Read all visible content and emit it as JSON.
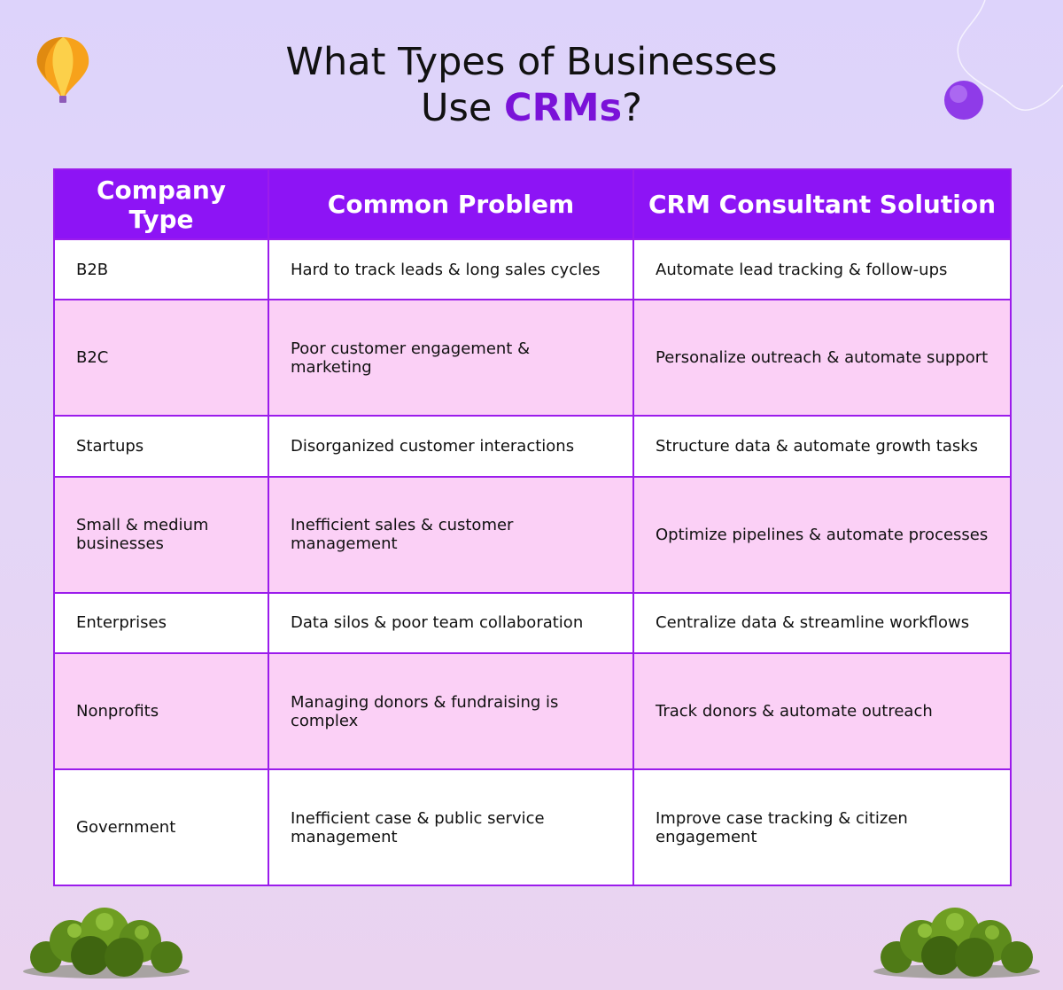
{
  "title": {
    "line1": "What Types of Businesses",
    "line2_prefix": "Use ",
    "line2_accent": "CRMs",
    "line2_suffix": "?"
  },
  "table": {
    "headers": [
      "Company Type",
      "Common Problem",
      "CRM Consultant Solution"
    ],
    "rows": [
      [
        "B2B",
        "Hard to track leads & long sales cycles",
        "Automate lead tracking & follow-ups"
      ],
      [
        "B2C",
        "Poor customer engagement & marketing",
        "Personalize outreach & automate support"
      ],
      [
        "Startups",
        "Disorganized customer interactions",
        "Structure data & automate growth tasks"
      ],
      [
        "Small & medium businesses",
        "Inefficient sales & customer management",
        "Optimize pipelines & automate processes"
      ],
      [
        "Enterprises",
        "Data silos & poor team collaboration",
        "Centralize data & streamline workflows"
      ],
      [
        "Nonprofits",
        "Managing donors & fundraising is complex",
        "Track donors & automate outreach"
      ],
      [
        "Government",
        "Inefficient case & public service management",
        "Improve case tracking & citizen engagement"
      ]
    ]
  },
  "colors": {
    "accent": "#7a12d8",
    "header_bg": "#8d14f5",
    "row_alt": "#fbd0f6",
    "border": "#9b1cec"
  },
  "icons": [
    "hot-air-balloon-icon",
    "purple-orb-icon",
    "bush-left-icon",
    "bush-right-icon"
  ]
}
